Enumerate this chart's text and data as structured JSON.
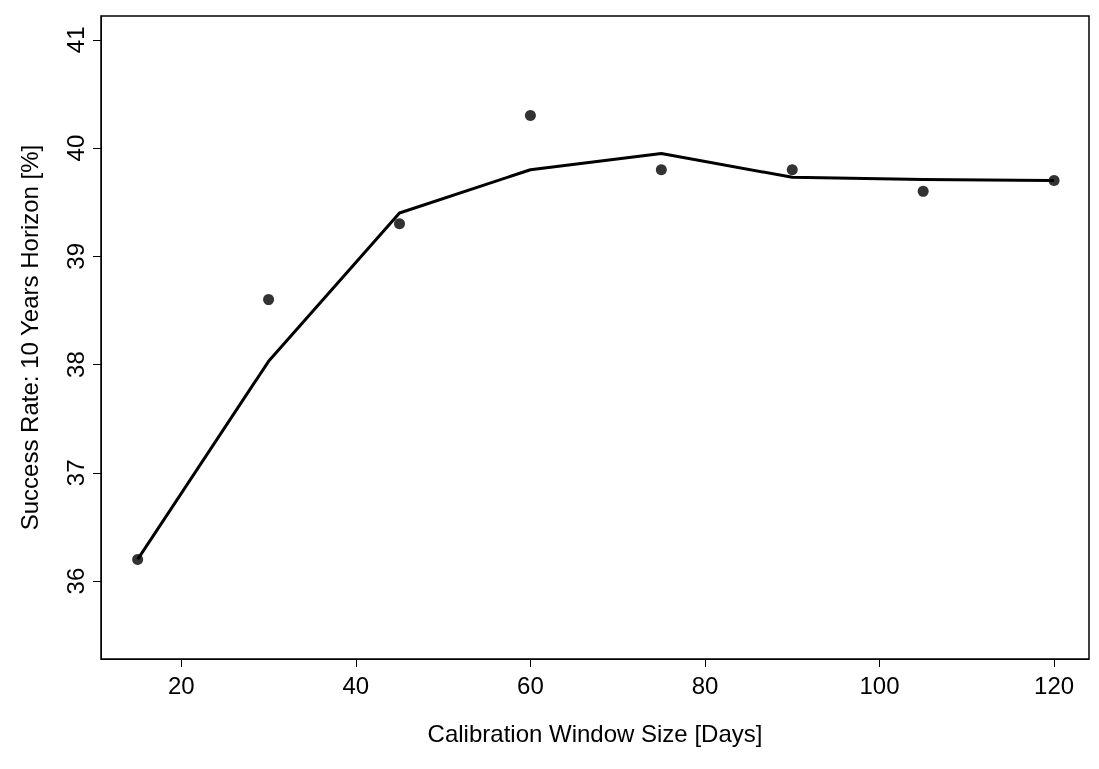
{
  "chart_data": {
    "type": "scatter",
    "xlabel": "Calibration Window Size [Days]",
    "ylabel": "Success Rate: 10 Years Horizon [%]",
    "xlim": [
      10.8,
      124
    ],
    "xticks": [
      20,
      40,
      60,
      80,
      100,
      120
    ],
    "ylim": [
      35.28,
      41.22
    ],
    "yticks": [
      36,
      37,
      38,
      39,
      40,
      41
    ],
    "grid": false,
    "series": [
      {
        "color": "#000000",
        "marker": "circle",
        "x": [
          15,
          30,
          45,
          60,
          75,
          90,
          105,
          120
        ],
        "values": [
          36.2,
          38.6,
          39.3,
          40.3,
          39.8,
          39.8,
          39.6,
          39.7
        ]
      },
      {
        "type": "line",
        "color": "#000000",
        "marker": "none",
        "line_style": "solid",
        "x": [
          15,
          30,
          45,
          60,
          75,
          90,
          105,
          120
        ],
        "values": [
          36.2,
          38.03,
          39.4,
          39.8,
          39.95,
          39.73,
          39.71,
          39.7
        ]
      }
    ]
  }
}
